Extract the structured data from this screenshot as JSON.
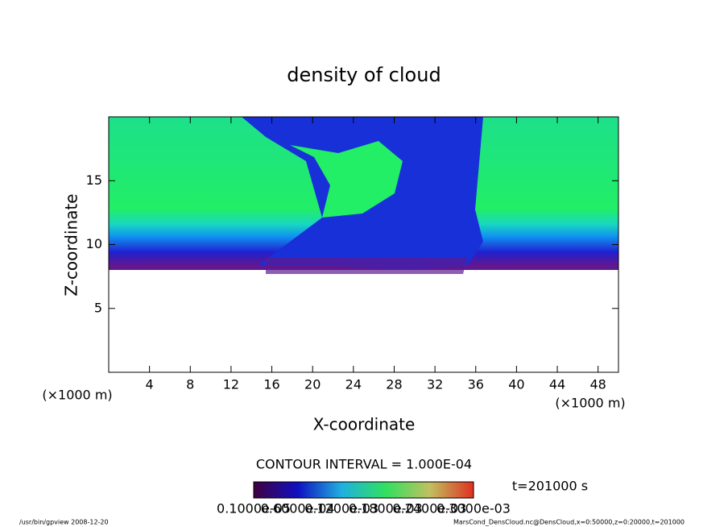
{
  "chart_data": {
    "type": "contour",
    "title": "density of cloud",
    "x_label": "X-coordinate",
    "y_label": "Z-coordinate",
    "x_unit_left": "(×1000 m)",
    "x_unit_right": "(×1000 m)",
    "xlim": [
      0,
      50
    ],
    "xticks": [
      4,
      8,
      12,
      16,
      20,
      24,
      28,
      32,
      36,
      40,
      44,
      48
    ],
    "ylim": [
      0,
      20
    ],
    "yticks": [
      5,
      10,
      15
    ],
    "contour_interval": "CONTOUR INTERVAL = 1.000E-04",
    "time_label": "t=201000 s",
    "colorbar_labels": [
      "0.1000e-05",
      "0.6000e-04",
      "0.1200e-03",
      "0.1800e-03",
      "0.2400e-03",
      "0.3000e-03"
    ],
    "footer_left": "/usr/bin/gpview  2008-12-20",
    "footer_right": "MarsCond_DensCloud.nc@DensCloud,x=0:50000,z=0:20000,t=201000"
  }
}
